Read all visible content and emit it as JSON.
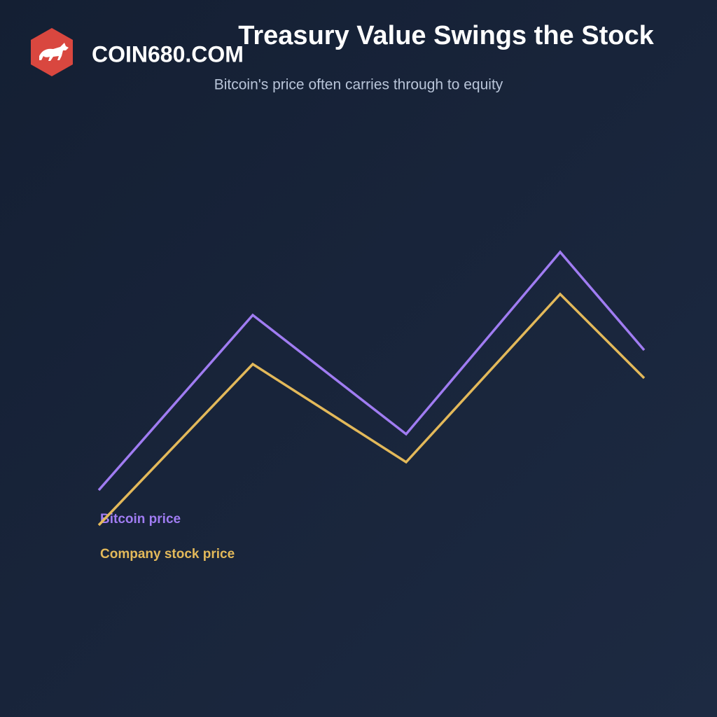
{
  "brand": "COIN680.COM",
  "chart_data": {
    "type": "line",
    "title": "Treasury Value Swings the Stock",
    "subtitle": "Bitcoin's price often carries through to equity",
    "series": [
      {
        "name": "Bitcoin price",
        "color": "#a07cf2",
        "values": [
          20,
          70,
          36,
          88,
          60
        ]
      },
      {
        "name": "Company stock price",
        "color": "#e3b95a",
        "values": [
          10,
          56,
          28,
          76,
          52
        ]
      }
    ]
  }
}
